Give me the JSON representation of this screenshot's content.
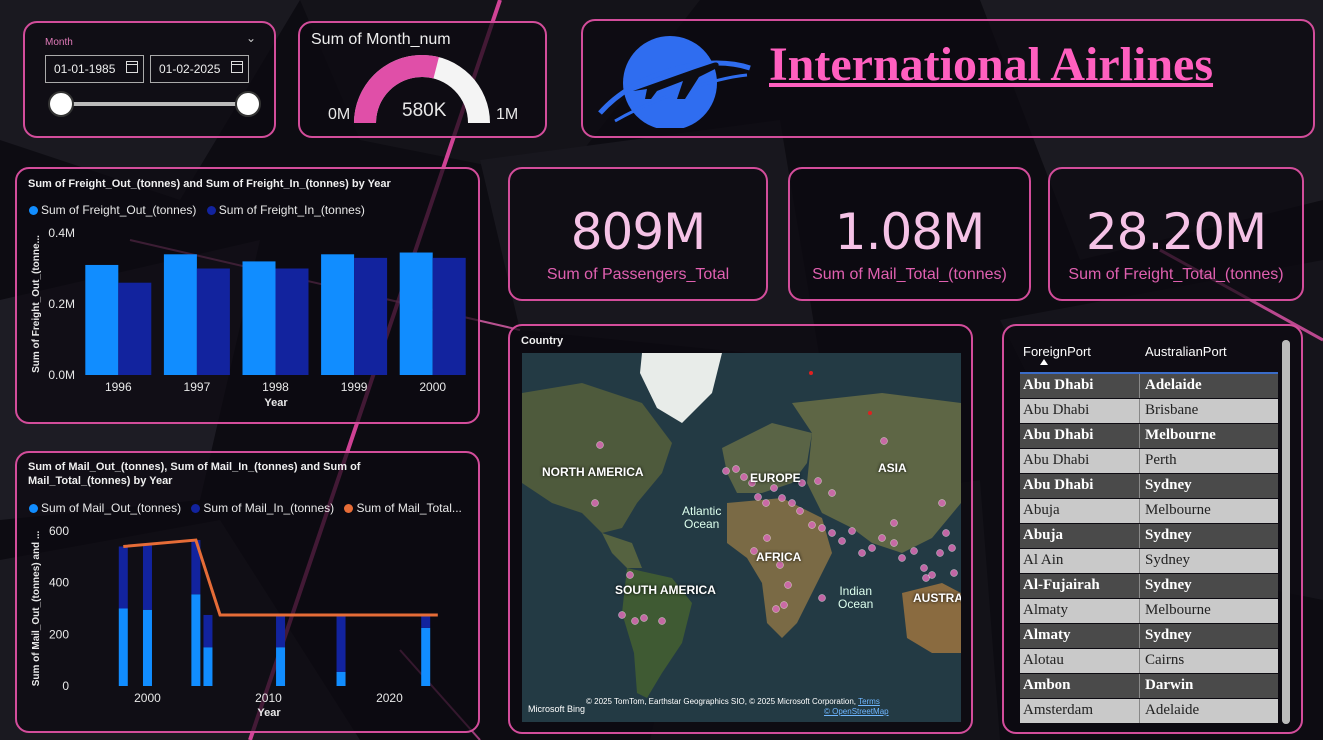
{
  "slicer": {
    "label": "Month",
    "start_date": "01-01-1985",
    "end_date": "01-02-2025",
    "range_fraction": [
      0,
      1
    ]
  },
  "gauge": {
    "title": "Sum of Month_num",
    "min_label": "0M",
    "max_label": "1M",
    "value_label": "580K",
    "value": 580000,
    "min": 0,
    "max": 1000000,
    "fill_color": "#e04fa8"
  },
  "banner": {
    "title": "International Airlines",
    "logo_icon": "airplane-globe-icon",
    "logo_color": "#2f6df0"
  },
  "kpis": [
    {
      "value": "809M",
      "label": "Sum of Passengers_Total"
    },
    {
      "value": "1.08M",
      "label": "Sum of Mail_Total_(tonnes)"
    },
    {
      "value": "28.20M",
      "label": "Sum of Freight_Total_(tonnes)"
    }
  ],
  "freight_chart": {
    "title": "Sum of Freight_Out_(tonnes) and Sum of Freight_In_(tonnes) by Year",
    "legend": [
      "Sum of Freight_Out_(tonnes)",
      "Sum of Freight_In_(tonnes)"
    ],
    "colors": [
      "#118dff",
      "#12239e"
    ],
    "yticks": [
      "0.4M",
      "0.2M",
      "0.0M"
    ],
    "ylabel": "Sum of Freight_Out_(tonne...",
    "xlabel": "Year"
  },
  "mail_chart": {
    "title_line1": "Sum of Mail_Out_(tonnes), Sum of Mail_In_(tonnes) and Sum of",
    "title_line2": "Mail_Total_(tonnes) by Year",
    "legend": [
      "Sum of Mail_Out_(tonnes)",
      "Sum of Mail_In_(tonnes)",
      "Sum of Mail_Total..."
    ],
    "colors": [
      "#118dff",
      "#12239e",
      "#e66c37"
    ],
    "yticks": [
      "600",
      "400",
      "200",
      "0"
    ],
    "xticks": [
      "2000",
      "2010",
      "2020"
    ],
    "ylabel": "Sum of Mail_Out_(tonnes) and ...",
    "xlabel": "Year"
  },
  "chart_data": [
    {
      "type": "bar",
      "title": "Sum of Freight_Out_(tonnes) and Sum of Freight_In_(tonnes) by Year",
      "categories": [
        "1996",
        "1997",
        "1998",
        "1999",
        "2000"
      ],
      "series": [
        {
          "name": "Sum of Freight_Out_(tonnes)",
          "values": [
            0.31,
            0.34,
            0.32,
            0.34,
            0.345
          ]
        },
        {
          "name": "Sum of Freight_In_(tonnes)",
          "values": [
            0.26,
            0.3,
            0.3,
            0.33,
            0.33
          ]
        }
      ],
      "ylim": [
        0,
        0.4
      ],
      "unit": "M",
      "xlabel": "Year",
      "ylabel": "Sum of Freight_Out_(tonne..."
    },
    {
      "type": "bar",
      "title": "Sum of Mail_Out_(tonnes), Sum of Mail_In_(tonnes) and Sum of Mail_Total_(tonnes) by Year",
      "x": [
        1998,
        2000,
        2004,
        2005,
        2011,
        2016,
        2023
      ],
      "series": [
        {
          "name": "Sum of Mail_Out_(tonnes)",
          "values": [
            300,
            295,
            355,
            150,
            150,
            55,
            225
          ]
        },
        {
          "name": "Sum of Mail_In_(tonnes)",
          "values": [
            240,
            255,
            210,
            125,
            120,
            220,
            50
          ]
        },
        {
          "name": "Sum of Mail_Total...",
          "line_x": [
            1998,
            2004,
            2006,
            2024
          ],
          "line_values": [
            540,
            565,
            275,
            275
          ]
        }
      ],
      "ylim": [
        0,
        600
      ],
      "xlim": [
        1995,
        2026
      ],
      "xlabel": "Year",
      "ylabel": "Sum of Mail_Out_(tonnes) and ..."
    }
  ],
  "map": {
    "title": "Country",
    "labels": [
      "NORTH AMERICA",
      "EUROPE",
      "ASIA",
      "AFRICA",
      "SOUTH AMERICA",
      "AUSTRA"
    ],
    "oceans": [
      "Atlantic",
      "Ocean",
      "Indian",
      "Ocean"
    ],
    "attribution": "© 2025 TomTom, Earthstar Geographics SIO, © 2025 Microsoft Corporation,",
    "terms": "Terms",
    "osm": "© OpenStreetMap",
    "bing": "Microsoft Bing",
    "dot_color": "#d36bb0"
  },
  "table": {
    "headers": [
      "ForeignPort",
      "AustralianPort"
    ],
    "rows": [
      [
        "Abu Dhabi",
        "Adelaide"
      ],
      [
        "Abu Dhabi",
        "Brisbane"
      ],
      [
        "Abu Dhabi",
        "Melbourne"
      ],
      [
        "Abu Dhabi",
        "Perth"
      ],
      [
        "Abu Dhabi",
        "Sydney"
      ],
      [
        "Abuja",
        "Melbourne"
      ],
      [
        "Abuja",
        "Sydney"
      ],
      [
        "Al Ain",
        "Sydney"
      ],
      [
        "Al-Fujairah",
        "Sydney"
      ],
      [
        "Almaty",
        "Melbourne"
      ],
      [
        "Almaty",
        "Sydney"
      ],
      [
        "Alotau",
        "Cairns"
      ],
      [
        "Ambon",
        "Darwin"
      ],
      [
        "Amsterdam",
        "Adelaide"
      ]
    ]
  }
}
